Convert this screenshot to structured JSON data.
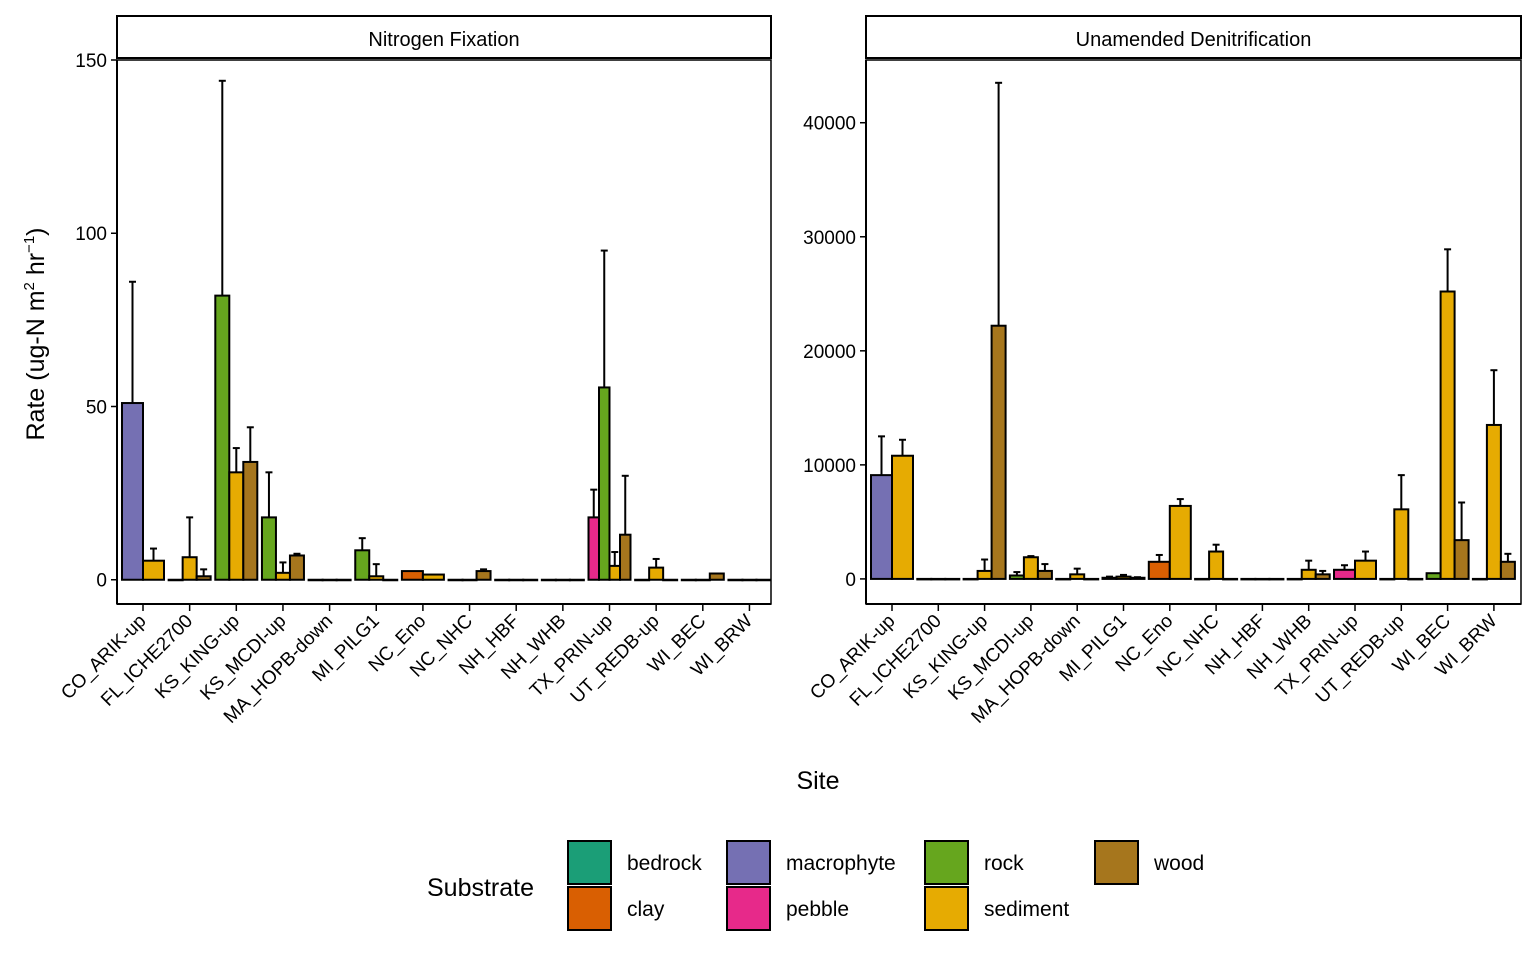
{
  "figure": {
    "ylabel_main": "Rate (ug-N m",
    "ylabel_sup1": "2",
    "ylabel_mid": " hr",
    "ylabel_sup2": "−1",
    "ylabel_end": ")",
    "xlabel": "Site"
  },
  "legend": {
    "title": "Substrate",
    "entries": [
      {
        "label": "bedrock",
        "color": "#1b9e77"
      },
      {
        "label": "clay",
        "color": "#d95f02"
      },
      {
        "label": "macrophyte",
        "color": "#7570b3"
      },
      {
        "label": "pebble",
        "color": "#e7298a"
      },
      {
        "label": "rock",
        "color": "#66a61e"
      },
      {
        "label": "sediment",
        "color": "#e6ab02"
      },
      {
        "label": "wood",
        "color": "#a6761d"
      }
    ]
  },
  "chart_data": [
    {
      "type": "bar",
      "title": "Nitrogen Fixation",
      "xlabel": "Site",
      "ylabel": "Rate (ug-N m2 hr-1)",
      "ylim": [
        -7,
        150
      ],
      "yticks": [
        0,
        50,
        100,
        150
      ],
      "grid": false,
      "legend": "bottom",
      "categories": [
        "CO_ARIK-up",
        "FL_ICHE2700",
        "KS_KING-up",
        "KS_MCDI-up",
        "MA_HOPB-down",
        "MI_PILG1",
        "NC_Eno",
        "NC_NHC",
        "NH_HBF",
        "NH_WHB",
        "TX_PRIN-up",
        "UT_REDB-up",
        "WI_BEC",
        "WI_BRW"
      ],
      "bars": [
        {
          "site": 0,
          "substrate": "macrophyte",
          "value": 51,
          "error_upper": 86
        },
        {
          "site": 0,
          "substrate": "sediment",
          "value": 5.5,
          "error_upper": 9
        },
        {
          "site": 1,
          "substrate": "macrophyte",
          "value": 0,
          "error_upper": 0
        },
        {
          "site": 1,
          "substrate": "sediment",
          "value": 6.5,
          "error_upper": 18
        },
        {
          "site": 1,
          "substrate": "wood",
          "value": 1,
          "error_upper": 3
        },
        {
          "site": 2,
          "substrate": "rock",
          "value": 82,
          "error_upper": 144
        },
        {
          "site": 2,
          "substrate": "sediment",
          "value": 31,
          "error_upper": 38
        },
        {
          "site": 2,
          "substrate": "wood",
          "value": 34,
          "error_upper": 44
        },
        {
          "site": 3,
          "substrate": "rock",
          "value": 18,
          "error_upper": 31
        },
        {
          "site": 3,
          "substrate": "sediment",
          "value": 2,
          "error_upper": 5
        },
        {
          "site": 3,
          "substrate": "wood",
          "value": 7,
          "error_upper": 7.5
        },
        {
          "site": 4,
          "substrate": "rock",
          "value": 0,
          "error_upper": 0
        },
        {
          "site": 4,
          "substrate": "sediment",
          "value": 0,
          "error_upper": 0
        },
        {
          "site": 4,
          "substrate": "wood",
          "value": 0,
          "error_upper": 0
        },
        {
          "site": 5,
          "substrate": "rock",
          "value": 8.5,
          "error_upper": 12
        },
        {
          "site": 5,
          "substrate": "sediment",
          "value": 1,
          "error_upper": 4.5
        },
        {
          "site": 5,
          "substrate": "wood",
          "value": 0,
          "error_upper": 0
        },
        {
          "site": 6,
          "substrate": "clay",
          "value": 2.5,
          "error_upper": 2.5
        },
        {
          "site": 6,
          "substrate": "sediment",
          "value": 1.5,
          "error_upper": 1.5
        },
        {
          "site": 7,
          "substrate": "rock",
          "value": 0,
          "error_upper": 0
        },
        {
          "site": 7,
          "substrate": "sediment",
          "value": 0,
          "error_upper": 0
        },
        {
          "site": 7,
          "substrate": "wood",
          "value": 2.5,
          "error_upper": 3
        },
        {
          "site": 8,
          "substrate": "rock",
          "value": 0,
          "error_upper": 0
        },
        {
          "site": 8,
          "substrate": "sediment",
          "value": 0,
          "error_upper": 0
        },
        {
          "site": 8,
          "substrate": "wood",
          "value": 0,
          "error_upper": 0
        },
        {
          "site": 9,
          "substrate": "rock",
          "value": 0,
          "error_upper": 0
        },
        {
          "site": 9,
          "substrate": "sediment",
          "value": 0,
          "error_upper": 0
        },
        {
          "site": 9,
          "substrate": "wood",
          "value": 0,
          "error_upper": 0
        },
        {
          "site": 10,
          "substrate": "pebble",
          "value": 18,
          "error_upper": 26
        },
        {
          "site": 10,
          "substrate": "rock",
          "value": 55.5,
          "error_upper": 95
        },
        {
          "site": 10,
          "substrate": "sediment",
          "value": 4,
          "error_upper": 8
        },
        {
          "site": 10,
          "substrate": "wood",
          "value": 13,
          "error_upper": 30
        },
        {
          "site": 11,
          "substrate": "rock",
          "value": 0,
          "error_upper": 0
        },
        {
          "site": 11,
          "substrate": "sediment",
          "value": 3.5,
          "error_upper": 6
        },
        {
          "site": 11,
          "substrate": "wood",
          "value": 0,
          "error_upper": 0
        },
        {
          "site": 12,
          "substrate": "rock",
          "value": 0,
          "error_upper": 0
        },
        {
          "site": 12,
          "substrate": "sediment",
          "value": 0,
          "error_upper": 0
        },
        {
          "site": 12,
          "substrate": "wood",
          "value": 1.8,
          "error_upper": 1.8
        },
        {
          "site": 13,
          "substrate": "rock",
          "value": 0,
          "error_upper": 0
        },
        {
          "site": 13,
          "substrate": "sediment",
          "value": 0,
          "error_upper": 0
        },
        {
          "site": 13,
          "substrate": "wood",
          "value": 0,
          "error_upper": 0
        }
      ]
    },
    {
      "type": "bar",
      "title": "Unamended Denitrification",
      "xlabel": "Site",
      "ylabel": "Rate (ug-N m2 hr-1)",
      "ylim": [
        -2200,
        45500
      ],
      "yticks": [
        0,
        10000,
        20000,
        30000,
        40000
      ],
      "grid": false,
      "legend": "bottom",
      "categories": [
        "CO_ARIK-up",
        "FL_ICHE2700",
        "KS_KING-up",
        "KS_MCDI-up",
        "MA_HOPB-down",
        "MI_PILG1",
        "NC_Eno",
        "NC_NHC",
        "NH_HBF",
        "NH_WHB",
        "TX_PRIN-up",
        "UT_REDB-up",
        "WI_BEC",
        "WI_BRW"
      ],
      "bars": [
        {
          "site": 0,
          "substrate": "macrophyte",
          "value": 9100,
          "error_upper": 12500
        },
        {
          "site": 0,
          "substrate": "sediment",
          "value": 10800,
          "error_upper": 12200
        },
        {
          "site": 1,
          "substrate": "macrophyte",
          "value": 0,
          "error_upper": 0
        },
        {
          "site": 1,
          "substrate": "sediment",
          "value": 0,
          "error_upper": 0
        },
        {
          "site": 1,
          "substrate": "wood",
          "value": 0,
          "error_upper": 0
        },
        {
          "site": 2,
          "substrate": "rock",
          "value": 0,
          "error_upper": 0
        },
        {
          "site": 2,
          "substrate": "sediment",
          "value": 700,
          "error_upper": 1700
        },
        {
          "site": 2,
          "substrate": "wood",
          "value": 22200,
          "error_upper": 43500
        },
        {
          "site": 3,
          "substrate": "rock",
          "value": 300,
          "error_upper": 600
        },
        {
          "site": 3,
          "substrate": "sediment",
          "value": 1900,
          "error_upper": 2000
        },
        {
          "site": 3,
          "substrate": "wood",
          "value": 700,
          "error_upper": 1300
        },
        {
          "site": 4,
          "substrate": "rock",
          "value": 0,
          "error_upper": 0
        },
        {
          "site": 4,
          "substrate": "sediment",
          "value": 400,
          "error_upper": 900
        },
        {
          "site": 4,
          "substrate": "wood",
          "value": 0,
          "error_upper": 0
        },
        {
          "site": 5,
          "substrate": "rock",
          "value": 100,
          "error_upper": 200
        },
        {
          "site": 5,
          "substrate": "sediment",
          "value": 200,
          "error_upper": 350
        },
        {
          "site": 5,
          "substrate": "wood",
          "value": 100,
          "error_upper": 150
        },
        {
          "site": 6,
          "substrate": "clay",
          "value": 1500,
          "error_upper": 2100
        },
        {
          "site": 6,
          "substrate": "sediment",
          "value": 6400,
          "error_upper": 7000
        },
        {
          "site": 7,
          "substrate": "rock",
          "value": 0,
          "error_upper": 0
        },
        {
          "site": 7,
          "substrate": "sediment",
          "value": 2400,
          "error_upper": 3000
        },
        {
          "site": 7,
          "substrate": "wood",
          "value": 0,
          "error_upper": 0
        },
        {
          "site": 8,
          "substrate": "rock",
          "value": 0,
          "error_upper": 0
        },
        {
          "site": 8,
          "substrate": "sediment",
          "value": 0,
          "error_upper": 0
        },
        {
          "site": 8,
          "substrate": "wood",
          "value": 0,
          "error_upper": 0
        },
        {
          "site": 9,
          "substrate": "rock",
          "value": 0,
          "error_upper": 0
        },
        {
          "site": 9,
          "substrate": "sediment",
          "value": 800,
          "error_upper": 1600
        },
        {
          "site": 9,
          "substrate": "wood",
          "value": 400,
          "error_upper": 700
        },
        {
          "site": 10,
          "substrate": "pebble",
          "value": 800,
          "error_upper": 1200
        },
        {
          "site": 10,
          "substrate": "sediment",
          "value": 1600,
          "error_upper": 2400
        },
        {
          "site": 11,
          "substrate": "rock",
          "value": 0,
          "error_upper": 0
        },
        {
          "site": 11,
          "substrate": "sediment",
          "value": 6100,
          "error_upper": 9100
        },
        {
          "site": 11,
          "substrate": "wood",
          "value": 0,
          "error_upper": 0
        },
        {
          "site": 12,
          "substrate": "rock",
          "value": 500,
          "error_upper": 500
        },
        {
          "site": 12,
          "substrate": "sediment",
          "value": 25200,
          "error_upper": 28900
        },
        {
          "site": 12,
          "substrate": "wood",
          "value": 3400,
          "error_upper": 6700
        },
        {
          "site": 13,
          "substrate": "rock",
          "value": 0,
          "error_upper": 0
        },
        {
          "site": 13,
          "substrate": "sediment",
          "value": 13500,
          "error_upper": 18300
        },
        {
          "site": 13,
          "substrate": "wood",
          "value": 1500,
          "error_upper": 2200
        }
      ]
    }
  ]
}
